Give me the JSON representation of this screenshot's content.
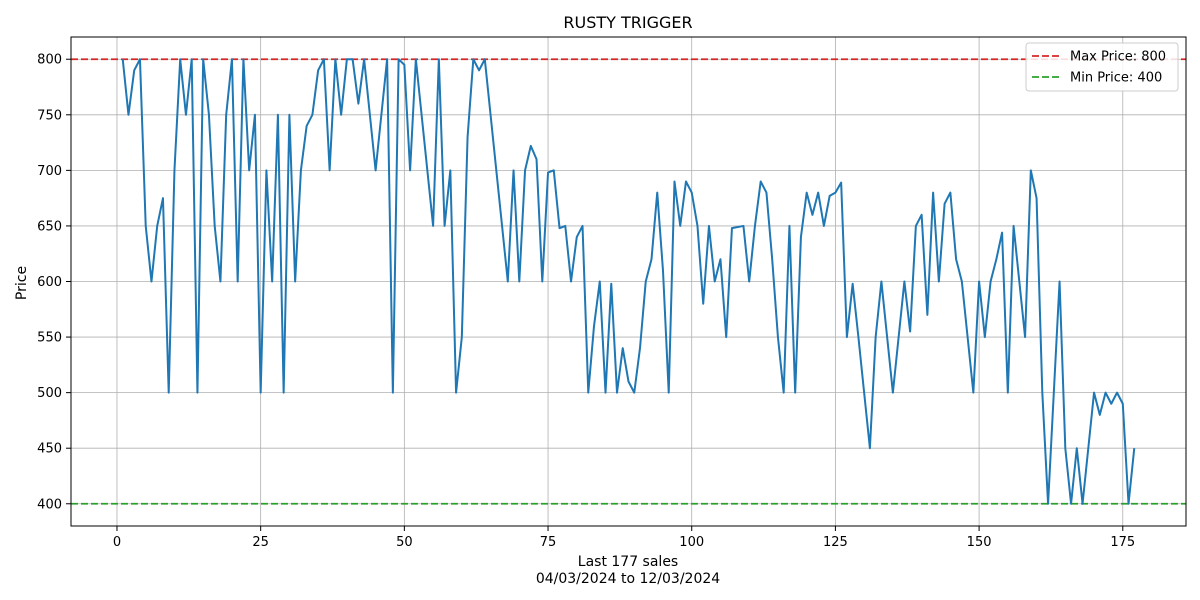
{
  "chart_data": {
    "type": "line",
    "title": "RUSTY TRIGGER",
    "xlabel": "Last 177 sales",
    "xlabel_line2": "04/03/2024 to 12/03/2024",
    "ylabel": "Price",
    "xlim": [
      -8,
      186
    ],
    "ylim": [
      380,
      820
    ],
    "xticks": [
      0,
      25,
      50,
      75,
      100,
      125,
      150,
      175
    ],
    "yticks": [
      400,
      450,
      500,
      550,
      600,
      650,
      700,
      750,
      800
    ],
    "grid": true,
    "legend_position": "top-right",
    "series": [
      {
        "color": "#1f77b4",
        "x": [
          1,
          2,
          3,
          4,
          5,
          6,
          7,
          8,
          9,
          10,
          11,
          12,
          13,
          14,
          15,
          16,
          17,
          18,
          19,
          20,
          21,
          22,
          23,
          24,
          25,
          26,
          27,
          28,
          29,
          30,
          31,
          32,
          33,
          34,
          35,
          36,
          37,
          38,
          39,
          40,
          41,
          42,
          43,
          44,
          45,
          46,
          47,
          48,
          49,
          50,
          51,
          52,
          53,
          54,
          55,
          56,
          57,
          58,
          59,
          60,
          61,
          62,
          63,
          64,
          65,
          66,
          67,
          68,
          69,
          70,
          71,
          72,
          73,
          74,
          75,
          76,
          77,
          78,
          79,
          80,
          81,
          82,
          83,
          84,
          85,
          86,
          87,
          88,
          89,
          90,
          91,
          92,
          93,
          94,
          95,
          96,
          97,
          98,
          99,
          100,
          101,
          102,
          103,
          104,
          105,
          106,
          107,
          108,
          109,
          110,
          111,
          112,
          113,
          114,
          115,
          116,
          117,
          118,
          119,
          120,
          121,
          122,
          123,
          124,
          125,
          126,
          127,
          128,
          129,
          130,
          131,
          132,
          133,
          134,
          135,
          136,
          137,
          138,
          139,
          140,
          141,
          142,
          143,
          144,
          145,
          146,
          147,
          148,
          149,
          150,
          151,
          152,
          153,
          154,
          155,
          156,
          157,
          158,
          159,
          160,
          161,
          162,
          163,
          164,
          165,
          166,
          167,
          168,
          169,
          170,
          171,
          172,
          173,
          174,
          175,
          176,
          177
        ],
        "values": [
          800,
          750,
          790,
          800,
          650,
          600,
          650,
          675,
          500,
          700,
          800,
          750,
          800,
          500,
          800,
          750,
          650,
          600,
          750,
          800,
          600,
          800,
          700,
          750,
          500,
          700,
          600,
          750,
          500,
          750,
          600,
          700,
          740,
          750,
          790,
          800,
          700,
          800,
          750,
          800,
          800,
          760,
          800,
          750,
          700,
          750,
          800,
          500,
          800,
          795,
          700,
          800,
          750,
          700,
          650,
          800,
          650,
          700,
          500,
          550,
          730,
          800,
          790,
          800,
          750,
          700,
          650,
          600,
          700,
          600,
          700,
          722,
          710,
          600,
          698,
          700,
          648,
          650,
          600,
          640,
          650,
          500,
          560,
          600,
          500,
          598,
          500,
          540,
          510,
          500,
          540,
          600,
          620,
          680,
          610,
          500,
          690,
          650,
          690,
          680,
          650,
          580,
          650,
          600,
          620,
          550,
          648,
          649,
          650,
          600,
          650,
          690,
          680,
          620,
          550,
          500,
          650,
          500,
          640,
          680,
          660,
          680,
          650,
          677,
          680,
          689,
          550,
          598,
          550,
          500,
          450,
          550,
          600,
          550,
          500,
          550,
          600,
          555,
          650,
          660,
          570,
          680,
          600,
          670,
          680,
          620,
          600,
          550,
          500,
          600,
          550,
          600,
          620,
          644,
          500,
          650,
          600,
          550,
          700,
          675,
          500,
          400,
          500,
          600,
          450,
          400,
          450,
          400,
          450,
          500,
          480,
          500,
          490,
          500,
          490,
          400,
          450
        ]
      }
    ],
    "reference_lines": [
      {
        "y": 800,
        "color": "#d62728",
        "label": "Max Price: 800"
      },
      {
        "y": 400,
        "color": "#2ca02c",
        "label": "Min Price: 400"
      }
    ]
  }
}
